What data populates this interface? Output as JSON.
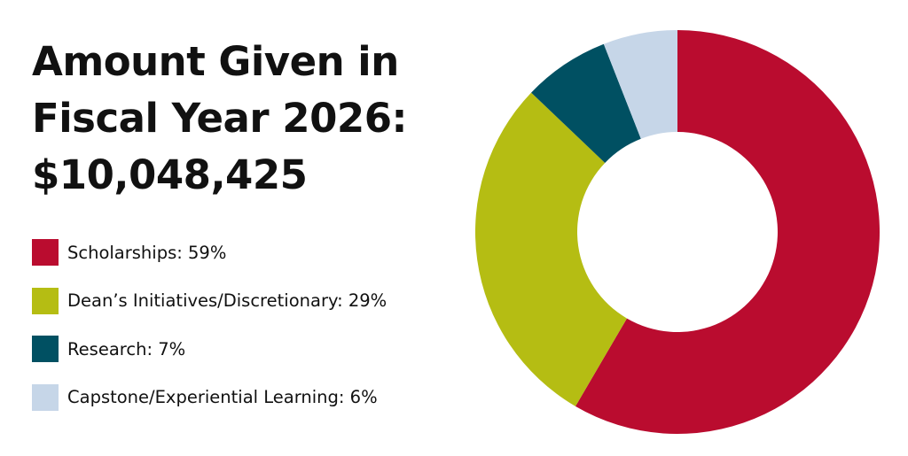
{
  "title": {
    "line1": "Amount Given in",
    "line2": "Fiscal Year 2026:",
    "line3": "$10,048,425"
  },
  "legend": [
    {
      "text": "Scholarships: 59%",
      "color": "#BA0C2F"
    },
    {
      "text": "Dean’s Initiatives/Discretionary: 29%",
      "color": "#B5BD13"
    },
    {
      "text": "Research: 7%",
      "color": "#005062"
    },
    {
      "text": "Capstone/Experiential Learning: 6%",
      "color": "#C6D6E8"
    }
  ],
  "chart_data": {
    "type": "pie",
    "style": "donut",
    "title": "Amount Given in Fiscal Year 2026: $10,048,425",
    "total": 10048425,
    "categories": [
      "Scholarships",
      "Dean’s Initiatives/Discretionary",
      "Research",
      "Capstone/Experiential Learning"
    ],
    "values": [
      59,
      29,
      7,
      6
    ],
    "unit": "%",
    "colors": [
      "#BA0C2F",
      "#B5BD13",
      "#005062",
      "#C6D6E8"
    ],
    "legend_position": "left"
  }
}
